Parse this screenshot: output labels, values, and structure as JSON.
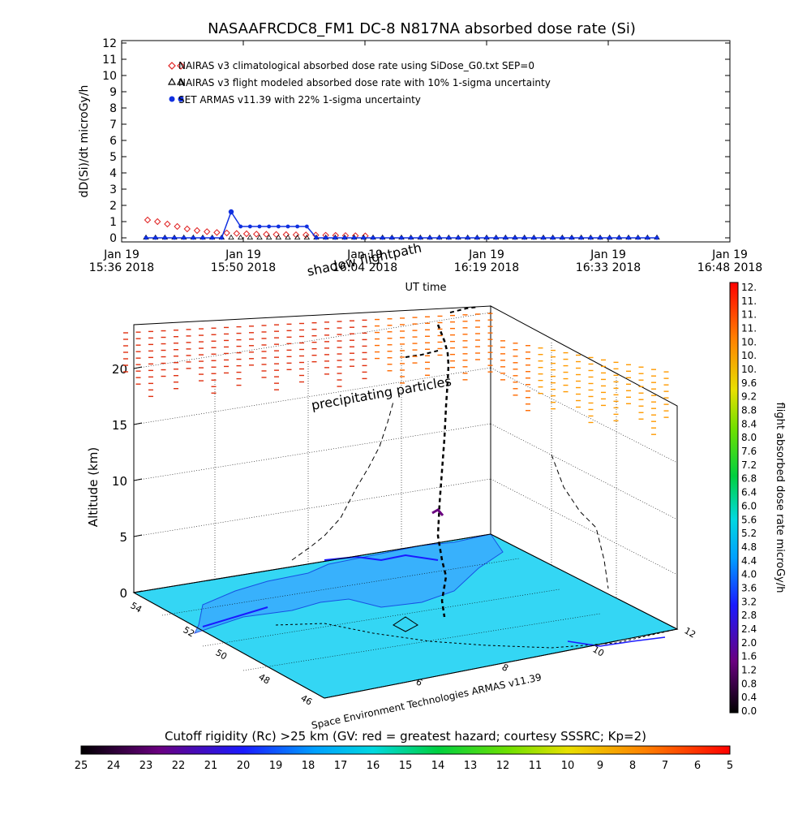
{
  "title": "NASAAFRCDC8_FM1 DC-8    N817NA absorbed dose rate (Si)",
  "chart_data": [
    {
      "type": "scatter",
      "ylabel": "dD(Si)/dt microGy/h",
      "xlabel": "UT time",
      "ylim": [
        0,
        12
      ],
      "yticks": [
        "0",
        "1",
        "2",
        "3",
        "4",
        "5",
        "6",
        "7",
        "8",
        "9",
        "10",
        "11",
        "12"
      ],
      "xticks": [
        {
          "l1": "Jan 19",
          "l2": "15:36 2018"
        },
        {
          "l1": "Jan 19",
          "l2": "15:50 2018"
        },
        {
          "l1": "Jan 19",
          "l2": "16:04 2018"
        },
        {
          "l1": "Jan 19",
          "l2": "16:19 2018"
        },
        {
          "l1": "Jan 19",
          "l2": "16:33 2018"
        },
        {
          "l1": "Jan 19",
          "l2": "16:48 2018"
        }
      ],
      "legend": [
        "NAIRAS v3 climatological absorbed dose rate using SiDose_G0.txt SEP=0",
        "NAIRAS v3 flight modeled absorbed dose rate with 10% 1-sigma uncertainty",
        "SET ARMAS v11.39 with 22% 1-sigma uncertainty"
      ],
      "series": [
        {
          "marker": "diamond",
          "color": "#e02020",
          "values": [
            1.1,
            1.0,
            0.85,
            0.7,
            0.55,
            0.45,
            0.38,
            0.33,
            0.3,
            0.27,
            0.25,
            0.23,
            0.22,
            0.21,
            0.2,
            0.19,
            0.18,
            0.17,
            0.16,
            0.15,
            0.14,
            0.13,
            0.12
          ]
        },
        {
          "marker": "triangle",
          "color": "#000000",
          "values": [
            0.02,
            0.02,
            0.02,
            0.02,
            0.02,
            0.02,
            0.02,
            0.02,
            0.02,
            0.02,
            0.02,
            0.02,
            0.02,
            0.02,
            0.02,
            0.02,
            0.02,
            0.02,
            0.02,
            0.02,
            0.02,
            0.02,
            0.02,
            0.02,
            0.02,
            0.02,
            0.02,
            0.02,
            0.02,
            0.02,
            0.02,
            0.02,
            0.02,
            0.02,
            0.02,
            0.02,
            0.02,
            0.02,
            0.02,
            0.02,
            0.02,
            0.02,
            0.02,
            0.02,
            0.02,
            0.02,
            0.02,
            0.02,
            0.02,
            0.02,
            0.02,
            0.02,
            0.02,
            0.02,
            0.02
          ]
        },
        {
          "marker": "dot",
          "color": "#1030e0",
          "values": [
            0,
            0,
            0,
            0,
            0,
            0,
            0,
            0,
            0,
            1.6,
            0.7,
            0.7,
            0.7,
            0.7,
            0.7,
            0.7,
            0.7,
            0.7,
            0,
            0,
            0,
            0,
            0,
            0,
            0,
            0,
            0,
            0,
            0,
            0,
            0,
            0,
            0,
            0,
            0,
            0,
            0,
            0,
            0,
            0,
            0,
            0,
            0,
            0,
            0,
            0,
            0,
            0,
            0,
            0,
            0,
            0,
            0,
            0,
            0
          ]
        }
      ]
    },
    {
      "type": "scatter",
      "ylabel": "Altitude (km)",
      "zticks": [
        "0",
        "5",
        "10",
        "15",
        "20"
      ],
      "lat_ticks": [
        "54",
        "52",
        "50",
        "48",
        "46"
      ],
      "lon_ticks": [
        "6",
        "8",
        "10",
        "12"
      ],
      "labels": {
        "shadow": "shadow flightpath",
        "precip": "precipitating particles",
        "credit": "Space Environment Technologies ARMAS v11.39"
      }
    },
    {
      "type": "heatmap",
      "colorbar_title": "flight absorbed dose rate microGy/h",
      "ticks": [
        "12.",
        "11.",
        "11.",
        "11.",
        "10.",
        "10.",
        "10.",
        "9.6",
        "9.2",
        "8.8",
        "8.4",
        "8.0",
        "7.6",
        "7.2",
        "6.8",
        "6.4",
        "6.0",
        "5.6",
        "5.2",
        "4.8",
        "4.4",
        "4.0",
        "3.6",
        "3.2",
        "2.8",
        "2.4",
        "2.0",
        "1.6",
        "1.2",
        "0.8",
        "0.4",
        "0.0"
      ]
    },
    {
      "type": "heatmap",
      "colorbar_title": "Cutoff rigidity (Rc) >25 km (GV: red = greatest hazard; courtesy SSSRC; Kp=2)",
      "ticks": [
        "25",
        "24",
        "23",
        "22",
        "21",
        "20",
        "19",
        "18",
        "17",
        "16",
        "15",
        "14",
        "13",
        "12",
        "11",
        "10",
        "9",
        "8",
        "7",
        "6",
        "5"
      ]
    }
  ]
}
